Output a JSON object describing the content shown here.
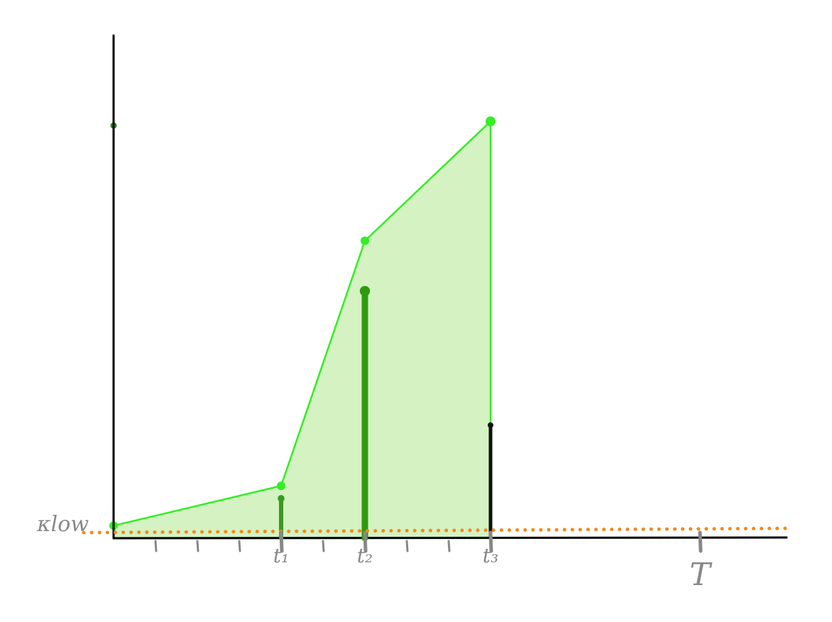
{
  "chart_data": {
    "type": "area",
    "title": "",
    "xlabel": "",
    "ylabel": "",
    "grid": false,
    "xlim": [
      0,
      16
    ],
    "ylim": [
      0,
      10
    ],
    "area_series": {
      "x": [
        0,
        4,
        6,
        9
      ],
      "y": [
        0.3,
        1.25,
        7.1,
        9.95
      ],
      "color": "#33ee22",
      "fill": "#d4f2c2"
    },
    "y_axis_point": {
      "x": 0,
      "y": 9.85,
      "color": "#2e8b1a"
    },
    "spikes": [
      {
        "x": 4,
        "y": 0.95,
        "width": 6,
        "color": "#3a9a22"
      },
      {
        "x": 6,
        "y": 5.9,
        "width": 9,
        "color": "#2e9a0e"
      },
      {
        "x": 9,
        "y": 2.7,
        "width": 5,
        "color": "#111111"
      }
    ],
    "hline": {
      "y": 0.1,
      "label": "κlow",
      "color": "#f28a1a",
      "style": "dotted"
    },
    "minor_ticks": [
      1,
      2,
      3,
      5,
      7,
      8
    ],
    "major_ticks": [
      {
        "x": 4,
        "label": "t₁"
      },
      {
        "x": 6,
        "label": "t₂"
      },
      {
        "x": 9,
        "label": "t₃"
      },
      {
        "x": 14,
        "label": "T"
      }
    ],
    "tick_color": "#888888",
    "axis_color": "#000000"
  }
}
